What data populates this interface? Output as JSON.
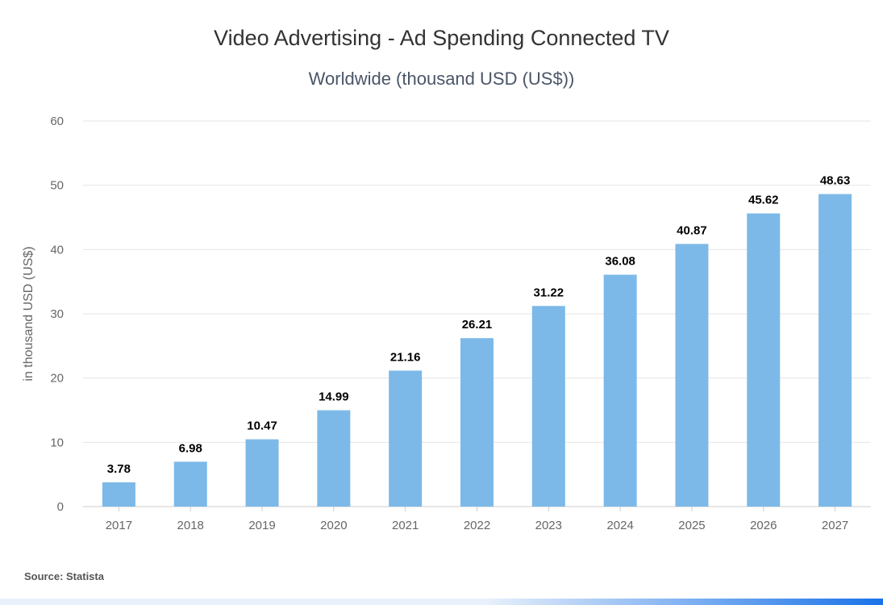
{
  "header": {
    "title": "Video Advertising - Ad Spending Connected TV",
    "subtitle": "Worldwide (thousand USD (US$))"
  },
  "footer": {
    "source": "Source: Statista"
  },
  "colors": {
    "bar": "#7cb9e8",
    "grid": "#e6e6e6",
    "axis_text": "#666666",
    "label_text": "#000000",
    "footer_left": "#e8f0fb",
    "footer_right": "#1a73e8"
  },
  "chart_data": {
    "type": "bar",
    "categories": [
      "2017",
      "2018",
      "2019",
      "2020",
      "2021",
      "2022",
      "2023",
      "2024",
      "2025",
      "2026",
      "2027"
    ],
    "values": [
      3.78,
      6.98,
      10.47,
      14.99,
      21.16,
      26.21,
      31.22,
      36.08,
      40.87,
      45.62,
      48.63
    ],
    "data_labels": [
      "3.78",
      "6.98",
      "10.47",
      "14.99",
      "21.16",
      "26.21",
      "31.22",
      "36.08",
      "40.87",
      "45.62",
      "48.63"
    ],
    "ylabel": "in thousand USD (US$)",
    "ylim": [
      0,
      60
    ],
    "yticks": [
      0,
      10,
      20,
      30,
      40,
      50,
      60
    ],
    "ytick_labels": [
      "0",
      "10",
      "20",
      "30",
      "40",
      "50",
      "60"
    ],
    "grid": true,
    "legend": "none"
  }
}
